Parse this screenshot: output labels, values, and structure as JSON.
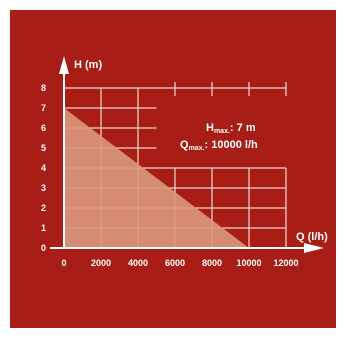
{
  "chart_data": {
    "type": "area",
    "xlabel": "Q (l/h)",
    "ylabel": "H (m)",
    "x_ticks": [
      0,
      2000,
      4000,
      6000,
      8000,
      10000,
      12000
    ],
    "y_ticks": [
      0,
      1,
      2,
      3,
      4,
      5,
      6,
      7,
      8
    ],
    "xlim": [
      0,
      12000
    ],
    "ylim": [
      0,
      8
    ],
    "grid": true,
    "series": [
      {
        "x": [
          0,
          10000
        ],
        "y": [
          7,
          0
        ]
      }
    ],
    "annotations": {
      "hmax_symbol": "H",
      "hmax_sub": "max.",
      "hmax_value": ": 7 m",
      "qmax_symbol": "Q",
      "qmax_sub": "max.",
      "qmax_value": ": 10000 l/h"
    },
    "colors": {
      "background": "#a81d16",
      "fill": "#d9997c",
      "lines": "#ffffff"
    }
  }
}
